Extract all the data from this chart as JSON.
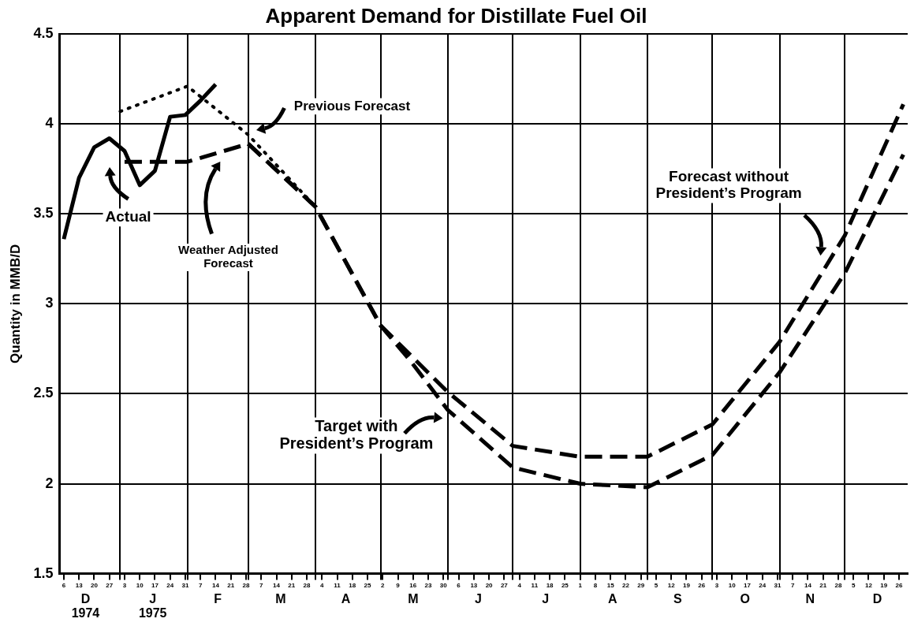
{
  "chart_data": {
    "type": "line",
    "title": "Apparent Demand for Distillate Fuel Oil",
    "ylabel": "Quantity in MMB/D",
    "xlim": [
      "1974-12-04",
      "1975-12-30"
    ],
    "xticks": [
      {
        "value": "1974-12-06",
        "label": "6"
      },
      {
        "value": "1974-12-13",
        "label": "13"
      },
      {
        "value": "1974-12-20",
        "label": "20"
      },
      {
        "value": "1974-12-27",
        "label": "27"
      },
      {
        "value": "1975-01-03",
        "label": "3"
      },
      {
        "value": "1975-01-10",
        "label": "10"
      },
      {
        "value": "1975-01-17",
        "label": "17"
      },
      {
        "value": "1975-01-24",
        "label": "24"
      },
      {
        "value": "1975-01-31",
        "label": "31"
      },
      {
        "value": "1975-02-07",
        "label": "7"
      },
      {
        "value": "1975-02-14",
        "label": "14"
      },
      {
        "value": "1975-02-21",
        "label": "21"
      },
      {
        "value": "1975-02-28",
        "label": "28"
      },
      {
        "value": "1975-03-07",
        "label": "7"
      },
      {
        "value": "1975-03-14",
        "label": "14"
      },
      {
        "value": "1975-03-21",
        "label": "21"
      },
      {
        "value": "1975-03-28",
        "label": "28"
      },
      {
        "value": "1975-04-04",
        "label": "4"
      },
      {
        "value": "1975-04-11",
        "label": "11"
      },
      {
        "value": "1975-04-18",
        "label": "18"
      },
      {
        "value": "1975-04-25",
        "label": "25"
      },
      {
        "value": "1975-05-02",
        "label": "2"
      },
      {
        "value": "1975-05-09",
        "label": "9"
      },
      {
        "value": "1975-05-16",
        "label": "16"
      },
      {
        "value": "1975-05-23",
        "label": "23"
      },
      {
        "value": "1975-05-30",
        "label": "30"
      },
      {
        "value": "1975-06-06",
        "label": "6"
      },
      {
        "value": "1975-06-13",
        "label": "13"
      },
      {
        "value": "1975-06-20",
        "label": "20"
      },
      {
        "value": "1975-06-27",
        "label": "27"
      },
      {
        "value": "1975-07-04",
        "label": "4"
      },
      {
        "value": "1975-07-11",
        "label": "11"
      },
      {
        "value": "1975-07-18",
        "label": "18"
      },
      {
        "value": "1975-07-25",
        "label": "25"
      },
      {
        "value": "1975-08-01",
        "label": "1"
      },
      {
        "value": "1975-08-08",
        "label": "8"
      },
      {
        "value": "1975-08-15",
        "label": "15"
      },
      {
        "value": "1975-08-22",
        "label": "22"
      },
      {
        "value": "1975-08-29",
        "label": "29"
      },
      {
        "value": "1975-09-05",
        "label": "5"
      },
      {
        "value": "1975-09-12",
        "label": "12"
      },
      {
        "value": "1975-09-19",
        "label": "19"
      },
      {
        "value": "1975-09-26",
        "label": "26"
      },
      {
        "value": "1975-10-03",
        "label": "3"
      },
      {
        "value": "1975-10-10",
        "label": "10"
      },
      {
        "value": "1975-10-17",
        "label": "17"
      },
      {
        "value": "1975-10-24",
        "label": "24"
      },
      {
        "value": "1975-10-31",
        "label": "31"
      },
      {
        "value": "1975-11-07",
        "label": "7"
      },
      {
        "value": "1975-11-14",
        "label": "14"
      },
      {
        "value": "1975-11-21",
        "label": "21"
      },
      {
        "value": "1975-11-28",
        "label": "28"
      },
      {
        "value": "1975-12-05",
        "label": "5"
      },
      {
        "value": "1975-12-12",
        "label": "12"
      },
      {
        "value": "1975-12-19",
        "label": "19"
      },
      {
        "value": "1975-12-26",
        "label": "26"
      },
      {
        "value": "1975-01-01",
        "label": null
      },
      {
        "value": "1975-02-01",
        "label": null
      },
      {
        "value": "1975-03-01",
        "label": null
      },
      {
        "value": "1975-04-01",
        "label": null
      },
      {
        "value": "1975-05-01",
        "label": null
      },
      {
        "value": "1975-06-01",
        "label": null
      },
      {
        "value": "1975-07-01",
        "label": null
      },
      {
        "value": "1975-08-01",
        "label": null
      },
      {
        "value": "1975-09-01",
        "label": null
      },
      {
        "value": "1975-10-01",
        "label": null
      },
      {
        "value": "1975-11-01",
        "label": null
      },
      {
        "value": "1975-12-01",
        "label": null
      }
    ],
    "x2lim": [
      "1974-12-04",
      "1975-12-30"
    ],
    "x2ticks": [
      {
        "value": "1974-12-16",
        "label": "D\n1974"
      },
      {
        "value": "1975-01-16",
        "label": "J\n1975"
      },
      {
        "value": "1975-02-15",
        "label": "F"
      },
      {
        "value": "1975-03-16",
        "label": "M"
      },
      {
        "value": "1975-04-15",
        "label": "A"
      },
      {
        "value": "1975-05-16",
        "label": "M"
      },
      {
        "value": "1975-06-15",
        "label": "J"
      },
      {
        "value": "1975-07-16",
        "label": "J"
      },
      {
        "value": "1975-08-16",
        "label": "A"
      },
      {
        "value": "1975-09-15",
        "label": "S"
      },
      {
        "value": "1975-10-16",
        "label": "O"
      },
      {
        "value": "1975-11-15",
        "label": "N"
      },
      {
        "value": "1975-12-16",
        "label": "D"
      }
    ],
    "ylim": [
      1.5,
      4.5
    ],
    "yticks": [
      1.5,
      2.0,
      2.5,
      3.0,
      3.5,
      4.0,
      4.5
    ],
    "grid": true,
    "legend": false,
    "marker": "none",
    "annotations": [
      "Actual",
      "Previous Forecast",
      "Weather Adjusted Forecast",
      "Forecast without President’s Program",
      "Target with President’s Program"
    ],
    "series": [
      {
        "color": "#000000",
        "line_style": "solid",
        "x": [
          "1974-12-06",
          "1974-12-13",
          "1974-12-20",
          "1974-12-27",
          "1975-01-03",
          "1975-01-10",
          "1975-01-17",
          "1975-01-24",
          "1975-01-31",
          "1975-02-07",
          "1975-02-14"
        ],
        "values": [
          3.36,
          3.7,
          3.87,
          3.92,
          3.85,
          3.66,
          3.74,
          4.04,
          4.05,
          4.13,
          4.22
        ]
      },
      {
        "color": "#000000",
        "line_style": "dotted",
        "x": [
          "1975-01-01",
          "1975-02-01",
          "1975-03-01",
          "1975-04-01"
        ],
        "values": [
          4.07,
          4.21,
          3.94,
          3.54
        ]
      },
      {
        "color": "#000000",
        "line_style": "dashed",
        "x": [
          "1975-01-03",
          "1975-02-01",
          "1975-03-01"
        ],
        "values": [
          3.79,
          3.79,
          3.89
        ]
      },
      {
        "color": "#000000",
        "line_style": "dashed",
        "x": [
          "1975-03-01",
          "1975-04-01",
          "1975-05-01",
          "1975-06-01",
          "1975-07-01",
          "1975-08-01",
          "1975-09-01",
          "1975-10-01",
          "1975-11-01",
          "1975-12-01",
          "1975-12-28"
        ],
        "values": [
          3.89,
          3.54,
          2.88,
          2.51,
          2.21,
          2.15,
          2.15,
          2.33,
          2.79,
          3.38,
          4.11
        ]
      },
      {
        "color": "#000000",
        "line_style": "dashed",
        "x": [
          "1975-03-01",
          "1975-04-01",
          "1975-05-01",
          "1975-05-15",
          "1975-06-01",
          "1975-07-01",
          "1975-08-01",
          "1975-09-01",
          "1975-10-01",
          "1975-11-01",
          "1975-12-01",
          "1975-12-28"
        ],
        "values": [
          3.89,
          3.54,
          2.88,
          2.68,
          2.41,
          2.09,
          2.0,
          1.98,
          2.16,
          2.62,
          3.17,
          3.83
        ]
      }
    ]
  }
}
